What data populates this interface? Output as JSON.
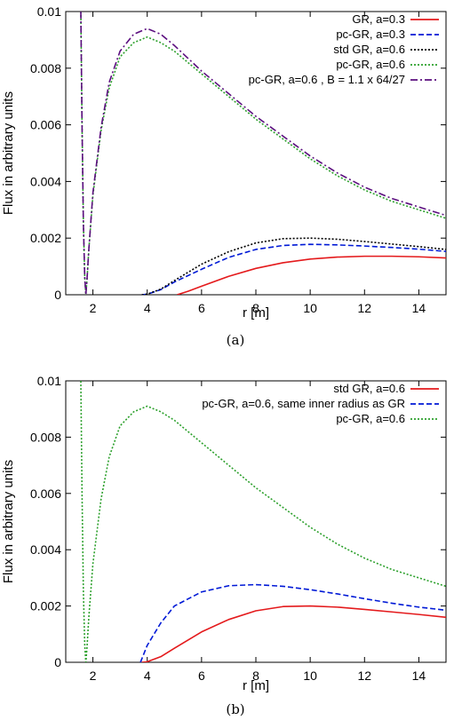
{
  "chart_data": [
    {
      "type": "line",
      "caption": "(a)",
      "xlabel": "r [m]",
      "ylabel": "Flux in arbitrary units",
      "xlim": [
        1,
        15
      ],
      "ylim": [
        0,
        0.01
      ],
      "xticks": [
        "2",
        "4",
        "6",
        "8",
        "10",
        "12",
        "14"
      ],
      "yticks": [
        "0",
        "0.002",
        "0.004",
        "0.006",
        "0.008",
        "0.01"
      ],
      "legend_position": "top-right",
      "series": [
        {
          "name": "GR, a=0.3",
          "color": "#e41a1c",
          "dash": "solid",
          "points": [
            [
              5.1,
              0
            ],
            [
              5.5,
              0.00012
            ],
            [
              6,
              0.0003
            ],
            [
              7,
              0.00065
            ],
            [
              8,
              0.00093
            ],
            [
              9,
              0.00113
            ],
            [
              10,
              0.00126
            ],
            [
              11,
              0.00133
            ],
            [
              12,
              0.00136
            ],
            [
              13,
              0.00136
            ],
            [
              14,
              0.00134
            ],
            [
              15,
              0.0013
            ]
          ]
        },
        {
          "name": "pc-GR, a=0.3",
          "color": "#0019d6",
          "dash": "dashed",
          "points": [
            [
              3.8,
              0
            ],
            [
              4,
              2e-05
            ],
            [
              4.5,
              0.00018
            ],
            [
              5,
              0.00045
            ],
            [
              6,
              0.0009
            ],
            [
              7,
              0.00132
            ],
            [
              8,
              0.0016
            ],
            [
              9,
              0.00174
            ],
            [
              10,
              0.00178
            ],
            [
              11,
              0.00176
            ],
            [
              12,
              0.00172
            ],
            [
              13,
              0.00167
            ],
            [
              14,
              0.00161
            ],
            [
              15,
              0.00153
            ]
          ]
        },
        {
          "name": "std GR, a=0.6",
          "color": "#000000",
          "dash": "dotted",
          "points": [
            [
              3.8,
              0
            ],
            [
              4,
              2e-05
            ],
            [
              4.5,
              0.0002
            ],
            [
              5,
              0.0005
            ],
            [
              6,
              0.00108
            ],
            [
              7,
              0.00152
            ],
            [
              8,
              0.00183
            ],
            [
              9,
              0.00198
            ],
            [
              10,
              0.002
            ],
            [
              11,
              0.00196
            ],
            [
              12,
              0.00188
            ],
            [
              13,
              0.00179
            ],
            [
              14,
              0.0017
            ],
            [
              15,
              0.0016
            ]
          ]
        },
        {
          "name": "pc-GR, a=0.6",
          "color": "#2ca02c",
          "dash": "dotted",
          "points": [
            [
              1.55,
              0.0105
            ],
            [
              1.6,
              0.006
            ],
            [
              1.65,
              0.0025
            ],
            [
              1.7,
              0.0006
            ],
            [
              1.74,
              0
            ],
            [
              1.78,
              0.0005
            ],
            [
              1.85,
              0.0016
            ],
            [
              2,
              0.0035
            ],
            [
              2.3,
              0.0058
            ],
            [
              2.6,
              0.0073
            ],
            [
              3,
              0.0084
            ],
            [
              3.5,
              0.0089
            ],
            [
              4,
              0.0091
            ],
            [
              4.5,
              0.0089
            ],
            [
              5,
              0.0086
            ],
            [
              6,
              0.0078
            ],
            [
              7,
              0.007
            ],
            [
              8,
              0.0062
            ],
            [
              9,
              0.0055
            ],
            [
              10,
              0.0048
            ],
            [
              11,
              0.0042
            ],
            [
              12,
              0.0037
            ],
            [
              13,
              0.0033
            ],
            [
              14,
              0.003
            ],
            [
              15,
              0.0027
            ]
          ]
        },
        {
          "name": "pc-GR, a=0.6 , B = 1.1 x 64/27",
          "color": "#5b0e7f",
          "dash": "dashdot",
          "points": [
            [
              1.55,
              0.0105
            ],
            [
              1.6,
              0.006
            ],
            [
              1.65,
              0.0025
            ],
            [
              1.7,
              0.0006
            ],
            [
              1.74,
              0
            ],
            [
              1.78,
              0.0005
            ],
            [
              1.85,
              0.0016
            ],
            [
              2,
              0.0036
            ],
            [
              2.3,
              0.0059
            ],
            [
              2.6,
              0.0075
            ],
            [
              3,
              0.0086
            ],
            [
              3.5,
              0.0092
            ],
            [
              4,
              0.0094
            ],
            [
              4.5,
              0.0092
            ],
            [
              5,
              0.0088
            ],
            [
              6,
              0.0079
            ],
            [
              7,
              0.0071
            ],
            [
              8,
              0.0063
            ],
            [
              9,
              0.0056
            ],
            [
              10,
              0.0049
            ],
            [
              11,
              0.0043
            ],
            [
              12,
              0.0038
            ],
            [
              13,
              0.0034
            ],
            [
              14,
              0.0031
            ],
            [
              15,
              0.0028
            ]
          ]
        }
      ]
    },
    {
      "type": "line",
      "caption": "(b)",
      "xlabel": "r [m]",
      "ylabel": "Flux in arbitrary units",
      "xlim": [
        1,
        15
      ],
      "ylim": [
        0,
        0.01
      ],
      "xticks": [
        "2",
        "4",
        "6",
        "8",
        "10",
        "12",
        "14"
      ],
      "yticks": [
        "0",
        "0.002",
        "0.004",
        "0.006",
        "0.008",
        "0.01"
      ],
      "legend_position": "top-right",
      "series": [
        {
          "name": "std GR, a=0.6",
          "color": "#e41a1c",
          "dash": "solid",
          "points": [
            [
              3.8,
              0
            ],
            [
              4,
              2e-05
            ],
            [
              4.5,
              0.0002
            ],
            [
              5,
              0.0005
            ],
            [
              6,
              0.00108
            ],
            [
              7,
              0.00152
            ],
            [
              8,
              0.00183
            ],
            [
              9,
              0.00198
            ],
            [
              10,
              0.002
            ],
            [
              11,
              0.00196
            ],
            [
              12,
              0.00188
            ],
            [
              13,
              0.00179
            ],
            [
              14,
              0.0017
            ],
            [
              15,
              0.0016
            ]
          ]
        },
        {
          "name": "pc-GR, a=0.6, same inner radius as GR",
          "color": "#0019d6",
          "dash": "dashed",
          "points": [
            [
              3.75,
              0
            ],
            [
              4,
              0.0006
            ],
            [
              4.5,
              0.0014
            ],
            [
              5,
              0.002
            ],
            [
              6,
              0.0025
            ],
            [
              7,
              0.00272
            ],
            [
              8,
              0.00276
            ],
            [
              9,
              0.0027
            ],
            [
              10,
              0.00258
            ],
            [
              11,
              0.00243
            ],
            [
              12,
              0.00226
            ],
            [
              13,
              0.0021
            ],
            [
              14,
              0.00196
            ],
            [
              15,
              0.00185
            ]
          ]
        },
        {
          "name": "pc-GR, a=0.6",
          "color": "#2ca02c",
          "dash": "dotted",
          "points": [
            [
              1.55,
              0.0105
            ],
            [
              1.6,
              0.006
            ],
            [
              1.65,
              0.0025
            ],
            [
              1.7,
              0.0006
            ],
            [
              1.74,
              0
            ],
            [
              1.78,
              0.0005
            ],
            [
              1.85,
              0.0016
            ],
            [
              2,
              0.0035
            ],
            [
              2.3,
              0.0058
            ],
            [
              2.6,
              0.0073
            ],
            [
              3,
              0.0084
            ],
            [
              3.5,
              0.0089
            ],
            [
              4,
              0.0091
            ],
            [
              4.5,
              0.0089
            ],
            [
              5,
              0.0086
            ],
            [
              6,
              0.0078
            ],
            [
              7,
              0.007
            ],
            [
              8,
              0.0062
            ],
            [
              9,
              0.0055
            ],
            [
              10,
              0.0048
            ],
            [
              11,
              0.0042
            ],
            [
              12,
              0.0037
            ],
            [
              13,
              0.0033
            ],
            [
              14,
              0.003
            ],
            [
              15,
              0.0027
            ]
          ]
        }
      ]
    }
  ]
}
